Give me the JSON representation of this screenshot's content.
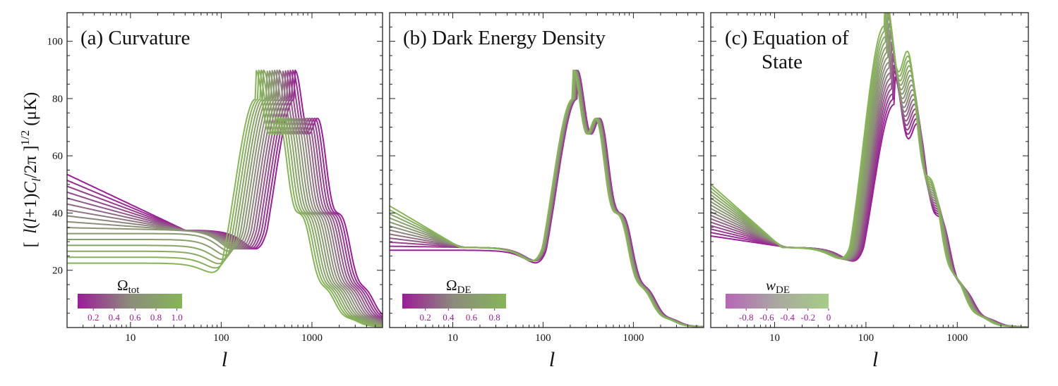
{
  "ylabel_parts": {
    "bracket_open": "[",
    "l1": "l",
    "mid1": "(",
    "l2": "l",
    "mid2": "+1)",
    "C": "C",
    "sub": "l",
    "mid3": "/2π ]",
    "sup": "1/2",
    "unit": "(μK)"
  },
  "xlabel": "l",
  "colors": {
    "low": "#9b1d97",
    "mid": "#8c8c7c",
    "high": "#86b558"
  },
  "chart_data": [
    {
      "type": "line",
      "title": "(a) Curvature",
      "xscale": "log",
      "xlim": [
        2,
        6000
      ],
      "ylim": [
        0,
        110
      ],
      "x_ticks": [
        10,
        100,
        1000
      ],
      "x_tick_labels": [
        "10",
        "100",
        "1000"
      ],
      "y_ticks": [
        20,
        40,
        60,
        80,
        100
      ],
      "y_tick_labels": [
        "20",
        "40",
        "60",
        "80",
        "100"
      ],
      "colorbar": {
        "label_main": "Ω",
        "label_sub": "tot",
        "ticks": [
          "0.2",
          "0.4",
          "0.6",
          "0.8",
          "1.0"
        ],
        "range": [
          0.05,
          1.05
        ]
      },
      "curves": {
        "count": 16,
        "param": [
          0.1,
          1.0
        ],
        "peak_l": [
          650,
          240
        ],
        "peak_height": [
          81,
          81
        ],
        "lowl_value": [
          53.5,
          22.5
        ],
        "trough_l": [
          40,
          40
        ]
      }
    },
    {
      "type": "line",
      "title": "(b) Dark Energy Density",
      "xscale": "log",
      "xlim": [
        2,
        6000
      ],
      "ylim": [
        0,
        110
      ],
      "x_ticks": [
        10,
        100,
        1000
      ],
      "x_tick_labels": [
        "10",
        "100",
        "1000"
      ],
      "y_ticks": [
        20,
        40,
        60,
        80,
        100
      ],
      "y_tick_labels": [
        "",
        "",
        "",
        "",
        ""
      ],
      "colorbar": {
        "label_main": "Ω",
        "label_sub": "DE",
        "ticks": [
          "0.2",
          "0.4",
          "0.6",
          "0.8"
        ],
        "range": [
          0.0,
          0.9
        ]
      },
      "curves": {
        "count": 12,
        "param": [
          0.0,
          0.9
        ],
        "peak_l": [
          240,
          215
        ],
        "peak_height": [
          81,
          81
        ],
        "lowl_value": [
          27,
          42.5
        ],
        "trough_l": [
          15,
          12
        ]
      }
    },
    {
      "type": "line",
      "title": "(c) Equation of State",
      "xscale": "log",
      "xlim": [
        2,
        6000
      ],
      "ylim": [
        0,
        110
      ],
      "x_ticks": [
        10,
        100,
        1000
      ],
      "x_tick_labels": [
        "10",
        "100",
        "1000"
      ],
      "y_ticks": [
        20,
        40,
        60,
        80,
        100
      ],
      "y_tick_labels": [
        "",
        "",
        "",
        "",
        ""
      ],
      "colorbar": {
        "label_main": "w",
        "label_sub": "DE",
        "ticks": [
          "-0.8",
          "-0.6",
          "-0.4",
          "-0.2",
          "0"
        ],
        "range": [
          -1.0,
          0.0
        ]
      },
      "curves": {
        "count": 16,
        "param": [
          -1.0,
          0.0
        ],
        "peak_l": [
          205,
          160
        ],
        "peak_height": [
          79,
          107
        ],
        "lowl_value": [
          32,
          50
        ],
        "trough_l": [
          14,
          12
        ]
      }
    }
  ]
}
